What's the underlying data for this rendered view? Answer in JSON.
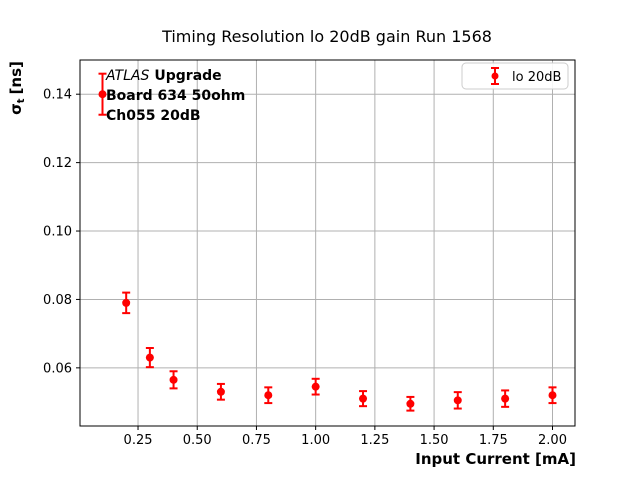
{
  "chart_data": {
    "type": "scatter",
    "title": "Timing Resolution lo 20dB gain Run 1568",
    "xlabel": "Input Current [mA]",
    "ylabel": "σ_t [ns]",
    "ylabel_parts": {
      "prefix": "σ",
      "sub": "t",
      "suffix": "[ns]"
    },
    "xlim": [
      0.005,
      2.095
    ],
    "ylim": [
      0.043,
      0.15
    ],
    "grid": true,
    "grid_color": "#b0b0b0",
    "legend_position": "upper right",
    "xtick_values": [
      0.25,
      0.5,
      0.75,
      1.0,
      1.25,
      1.5,
      1.75,
      2.0
    ],
    "xtick_labels": [
      "0.25",
      "0.50",
      "0.75",
      "1.00",
      "1.25",
      "1.50",
      "1.75",
      "2.00"
    ],
    "ytick_values": [
      0.06,
      0.08,
      0.1,
      0.12,
      0.14
    ],
    "ytick_labels": [
      "0.06",
      "0.08",
      "0.10",
      "0.12",
      "0.14"
    ],
    "series": [
      {
        "name": "lo 20dB",
        "color": "#ff0000",
        "x": [
          0.1,
          0.2,
          0.3,
          0.4,
          0.6,
          0.8,
          1.0,
          1.2,
          1.4,
          1.6,
          1.8,
          2.0
        ],
        "y": [
          0.14,
          0.079,
          0.063,
          0.0565,
          0.053,
          0.052,
          0.0545,
          0.051,
          0.0495,
          0.0505,
          0.051,
          0.052
        ],
        "yerr": [
          0.006,
          0.003,
          0.0028,
          0.0025,
          0.0023,
          0.0023,
          0.0023,
          0.0022,
          0.002,
          0.0024,
          0.0024,
          0.0023
        ]
      }
    ]
  },
  "legend": {
    "label": "lo 20dB"
  },
  "annotation": {
    "line1_italic": "ATLAS",
    "line1_bold": "Upgrade",
    "line2": "Board 634 50ohm",
    "line3": "Ch055 20dB"
  }
}
